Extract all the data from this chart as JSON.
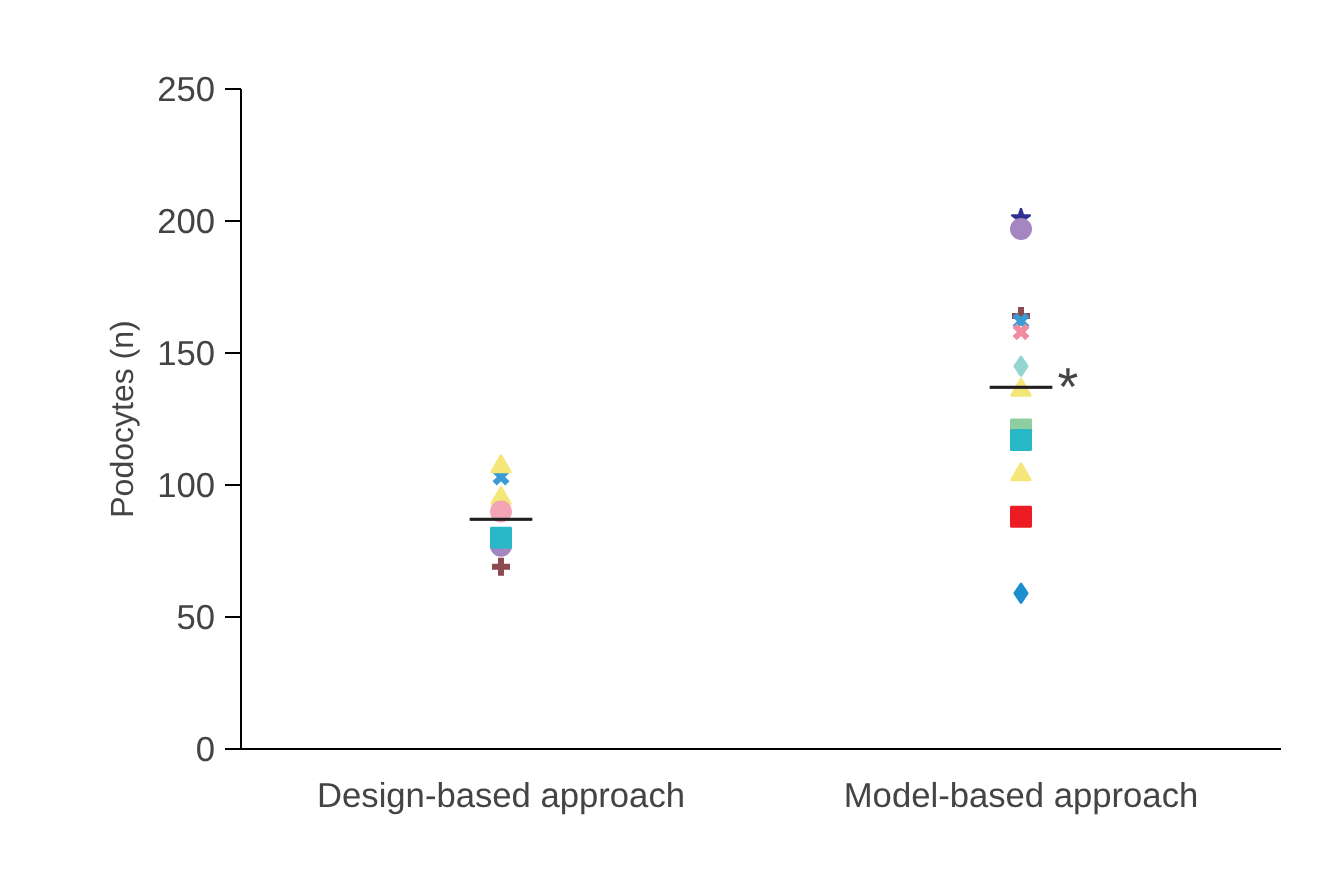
{
  "chart_data": {
    "type": "scatter",
    "ylabel": "Podocytes (n)",
    "categories": [
      "Design-based approach",
      "Model-based approach"
    ],
    "ylim": [
      0,
      250
    ],
    "yticks": [
      0,
      50,
      100,
      150,
      200,
      250
    ],
    "grid": false,
    "series": [
      {
        "color": "#2e3192",
        "marker": "star",
        "values": [
          null,
          201
        ]
      },
      {
        "color": "#a487c0",
        "marker": "circle",
        "values": [
          77,
          197
        ]
      },
      {
        "color": "#8b4a4f",
        "marker": "cross",
        "values": [
          69,
          164
        ]
      },
      {
        "color": "#3a9bd5",
        "marker": "x",
        "values": [
          103,
          162
        ]
      },
      {
        "color": "#94d5d2",
        "marker": "diamond",
        "values": [
          null,
          145
        ]
      },
      {
        "color": "#f5e67a",
        "marker": "triangle",
        "values": [
          95,
          136
        ]
      },
      {
        "color": "#8fcf9f",
        "marker": "square",
        "values": [
          null,
          121
        ]
      },
      {
        "color": "#29b8c8",
        "marker": "square",
        "values": [
          80,
          117
        ]
      },
      {
        "color": "#f5e67a",
        "marker": "triangle",
        "values": [
          107,
          104
        ]
      },
      {
        "color": "#ed1c24",
        "marker": "square",
        "values": [
          null,
          88
        ]
      },
      {
        "color": "#1b8fd0",
        "marker": "diamond",
        "values": [
          null,
          59
        ]
      },
      {
        "color": "#f4a5b5",
        "marker": "circle",
        "values": [
          90,
          null
        ]
      },
      {
        "color": "#f08ca0",
        "marker": "x",
        "values": [
          null,
          158
        ]
      },
      {
        "type": "box",
        "color": "#231f20",
        "boxes": [
          {
            "low": 87,
            "q1": 87,
            "median": 87,
            "q3": 87,
            "high": 87
          },
          {
            "low": 137,
            "q1": 137,
            "median": 137,
            "q3": 137,
            "high": 137
          }
        ]
      }
    ],
    "annotations": [
      {
        "text": "*",
        "x": "Model-based approach",
        "y": 137
      }
    ]
  }
}
